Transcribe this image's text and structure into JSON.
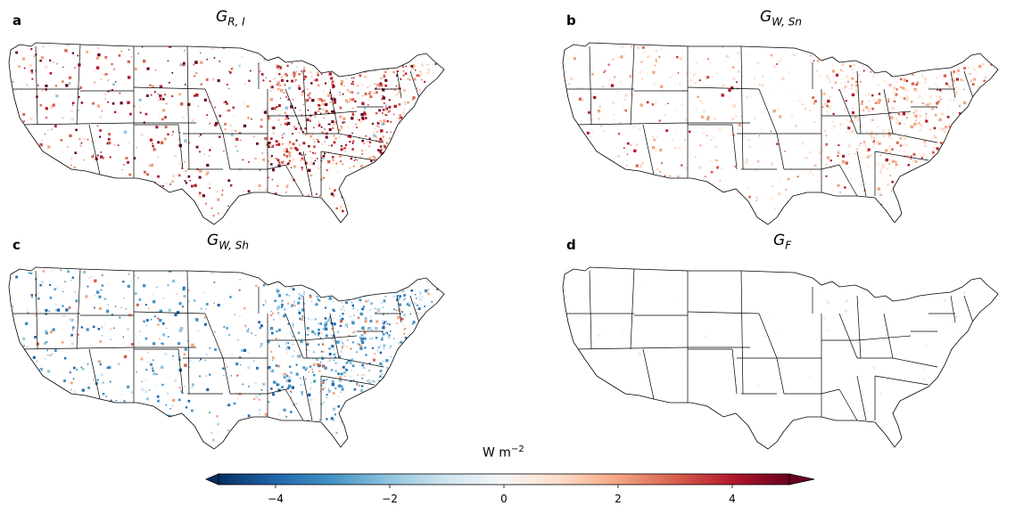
{
  "figure": {
    "panels": [
      {
        "id": "a",
        "title_base": "G",
        "title_sub": "R, I",
        "color_scheme": "warm"
      },
      {
        "id": "b",
        "title_base": "G",
        "title_sub": "W, Sn",
        "color_scheme": "mild-warm"
      },
      {
        "id": "c",
        "title_base": "G",
        "title_sub": "W, Sh",
        "color_scheme": "cool"
      },
      {
        "id": "d",
        "title_base": "G",
        "title_sub": "F",
        "color_scheme": "empty"
      }
    ],
    "colorbar": {
      "label_base": "W m",
      "label_exp": "−2",
      "min": -5,
      "max": 5,
      "ticks": [
        {
          "value": -4,
          "label": "−4"
        },
        {
          "value": -2,
          "label": "−2"
        },
        {
          "value": 0,
          "label": "0"
        },
        {
          "value": 2,
          "label": "2"
        },
        {
          "value": 4,
          "label": "4"
        }
      ],
      "colors": [
        "#053061",
        "#2166ac",
        "#4393c3",
        "#92c5de",
        "#d1e5f0",
        "#f7f7f7",
        "#fddbc7",
        "#f4a582",
        "#d6604d",
        "#b2182b",
        "#67001f"
      ]
    }
  }
}
